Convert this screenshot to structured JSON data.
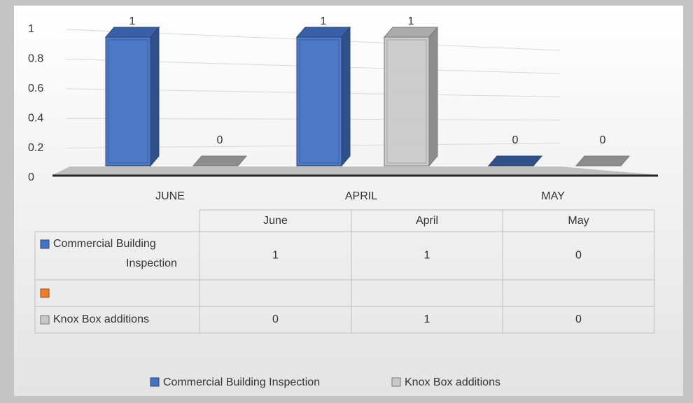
{
  "chart_data": {
    "type": "bar3d",
    "categories": [
      "JUNE",
      "APRIL",
      "MAY"
    ],
    "table_categories": [
      "June",
      "April",
      "May"
    ],
    "series": [
      {
        "name": "Commercial Building Inspection",
        "color": "#4472c4",
        "values": [
          1,
          1,
          0
        ]
      },
      {
        "name": null,
        "color": "#ed7d31",
        "values": [
          null,
          null,
          null
        ]
      },
      {
        "name": "Knox Box additions",
        "color": "#c9c9c9",
        "values": [
          0,
          1,
          0
        ]
      }
    ],
    "ylim": [
      0,
      1
    ],
    "yticks": [
      0,
      0.2,
      0.4,
      0.6,
      0.8,
      1
    ],
    "grid": true
  }
}
